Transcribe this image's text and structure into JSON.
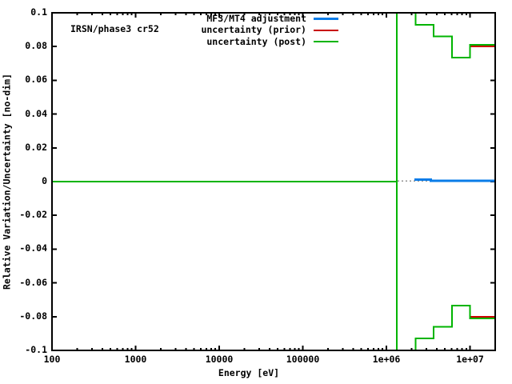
{
  "page": {
    "background": "#ffffff"
  },
  "chart": {
    "title_label": "IRSN/phase3 cr52",
    "xlabel": "Energy [eV]",
    "ylabel": "Relative Variation/Uncertainty [no-dim]",
    "colors": {
      "adjustment": "#0a7ce8",
      "prior": "#c80000",
      "post": "#00b400",
      "zero_axis_dots": "#909090",
      "border": "#000000"
    },
    "legend": [
      {
        "id": "adjustment",
        "label": "MF3/MT4 adjustment",
        "color": "#0a7ce8",
        "thickness": 3
      },
      {
        "id": "prior",
        "label": "uncertainty (prior)",
        "color": "#c80000",
        "thickness": 2
      },
      {
        "id": "post",
        "label": "uncertainty (post)",
        "color": "#00b400",
        "thickness": 2
      }
    ],
    "x_tick_labels": [
      {
        "value": 100,
        "label": "100"
      },
      {
        "value": 1000,
        "label": "1000"
      },
      {
        "value": 10000,
        "label": "10000"
      },
      {
        "value": 100000,
        "label": "100000"
      },
      {
        "value": 1000000,
        "label": "1e+06"
      },
      {
        "value": 10000000,
        "label": "1e+07"
      }
    ],
    "y_tick_labels": [
      {
        "value": 0.1,
        "label": "0.1"
      },
      {
        "value": 0.08,
        "label": "0.08"
      },
      {
        "value": 0.06,
        "label": "0.06"
      },
      {
        "value": 0.04,
        "label": "0.04"
      },
      {
        "value": 0.02,
        "label": "0.02"
      },
      {
        "value": 0,
        "label": "0"
      },
      {
        "value": -0.02,
        "label": "-0.02"
      },
      {
        "value": -0.04,
        "label": "-0.04"
      },
      {
        "value": -0.06,
        "label": "-0.06"
      },
      {
        "value": -0.08,
        "label": "-0.08"
      },
      {
        "value": -0.1,
        "label": "-0.1"
      }
    ]
  },
  "chart_data": {
    "type": "line",
    "title": "IRSN/phase3 cr52",
    "xlabel": "Energy [eV]",
    "ylabel": "Relative Variation/Uncertainty [no-dim]",
    "x_scale": "log",
    "xlim": [
      100,
      20000000
    ],
    "ylim": [
      -0.1,
      0.1
    ],
    "grid": false,
    "legend_position": "top-inside",
    "zero_axis": {
      "style": "dotted",
      "y": 0,
      "visible_x": [
        1360000,
        3400000
      ]
    },
    "series": [
      {
        "name": "MF3/MT4 adjustment",
        "type": "steps",
        "color": "#0a7ce8",
        "note": "near zero everywhere; slightly positive at high energy",
        "points": [
          [
            2160000,
            0.0012
          ],
          [
            3400000,
            0.0012
          ],
          [
            3400000,
            0.0004
          ],
          [
            19600000,
            0.0004
          ]
        ]
      },
      {
        "name": "uncertainty (prior)",
        "type": "steps",
        "color": "#c80000",
        "note": "visible only in last group, elsewhere covered by posterior curve",
        "segments": [
          {
            "x": [
              10000000,
              19600000
            ],
            "y": 0.08
          },
          {
            "x": [
              10000000,
              19600000
            ],
            "y": -0.08
          }
        ]
      },
      {
        "name": "uncertainty (post)",
        "type": "steps",
        "color": "#00b400",
        "mirrored": true,
        "zero_segment": {
          "x": [
            100,
            1330000
          ],
          "y": 0
        },
        "offscale_spike_x": 1330000,
        "groups": [
          {
            "e_lo": 1330000,
            "e_hi": 2230000,
            "value": null,
            "note": "off-scale, |value| > 0.1"
          },
          {
            "e_lo": 2230000,
            "e_hi": 3680000,
            "value": 0.093
          },
          {
            "e_lo": 3680000,
            "e_hi": 6070000,
            "value": 0.086
          },
          {
            "e_lo": 6070000,
            "e_hi": 10000000,
            "value": 0.0735
          },
          {
            "e_lo": 10000000,
            "e_hi": 19600000,
            "value": 0.081
          }
        ]
      }
    ]
  }
}
